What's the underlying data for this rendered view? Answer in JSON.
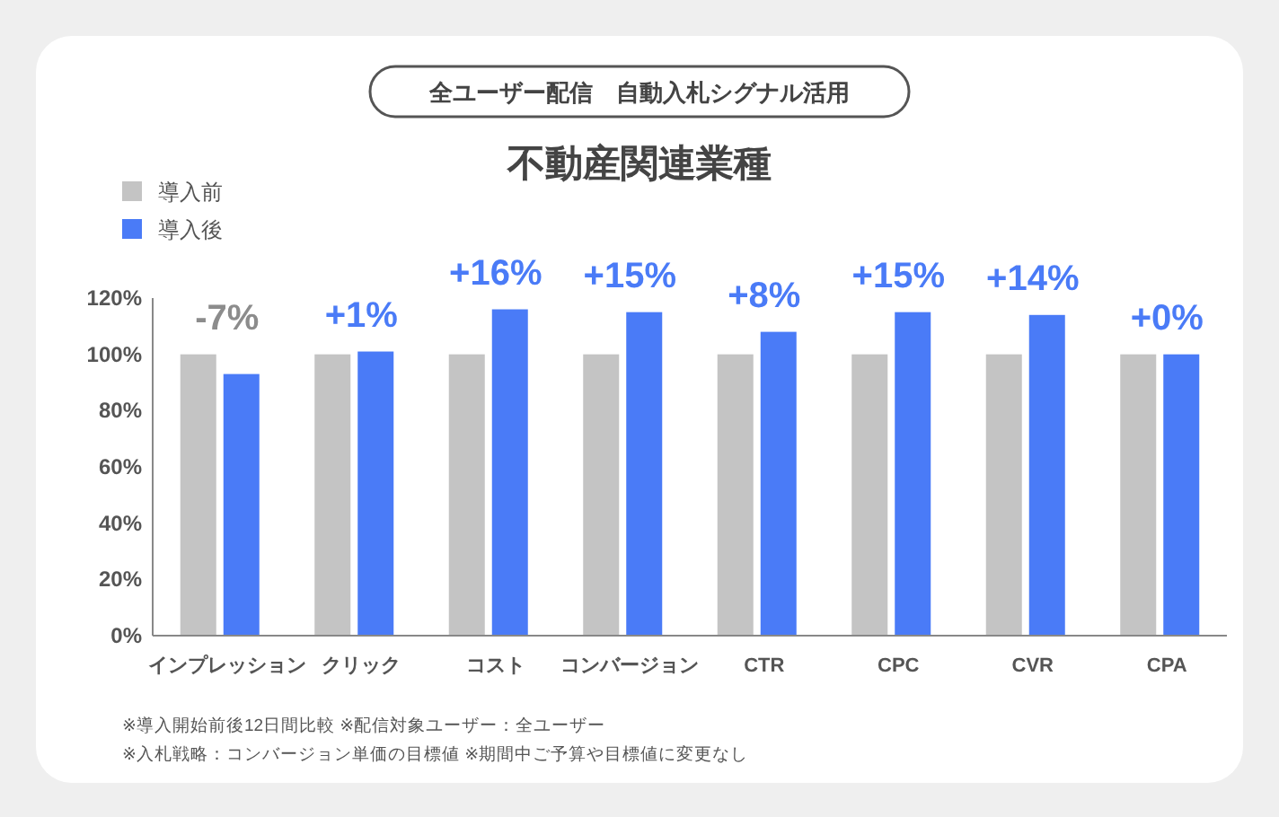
{
  "chart_data": {
    "type": "bar",
    "title": "不動産関連業種",
    "subtitle": "全ユーザー配信　自動入札シグナル活用",
    "categories": [
      "インプレッション",
      "クリック",
      "コスト",
      "コンバージョン",
      "CTR",
      "CPC",
      "CVR",
      "CPA"
    ],
    "series": [
      {
        "name": "導入前",
        "color": "#c4c4c4",
        "values": [
          100,
          100,
          100,
          100,
          100,
          100,
          100,
          100
        ]
      },
      {
        "name": "導入後",
        "color": "#4a7bf7",
        "values": [
          93,
          101,
          116,
          115,
          108,
          115,
          114,
          100
        ]
      }
    ],
    "ylim": [
      0,
      120
    ],
    "yticks": [
      {
        "value": 0,
        "label": "0%"
      },
      {
        "value": 20,
        "label": "20%"
      },
      {
        "value": 40,
        "label": "40%"
      },
      {
        "value": 60,
        "label": "60%"
      },
      {
        "value": 80,
        "label": "80%"
      },
      {
        "value": 100,
        "label": "100%"
      },
      {
        "value": 120,
        "label": "120%"
      }
    ],
    "grid": false,
    "legend": "top left",
    "annotations": [
      {
        "text": "-7%",
        "x": "インプレッション",
        "y": 93
      },
      {
        "text": "+1%",
        "x": "クリック",
        "y": 101
      },
      {
        "text": "+16%",
        "x": "コスト",
        "y": 116
      },
      {
        "text": "+15%",
        "x": "コンバージョン",
        "y": 115
      },
      {
        "text": "+8%",
        "x": "CTR",
        "y": 108
      },
      {
        "text": "+15%",
        "x": "CPC",
        "y": 115
      },
      {
        "text": "+14%",
        "x": "CVR",
        "y": 114
      },
      {
        "text": "+0%",
        "x": "CPA",
        "y": 100
      },
      "※導入開始前後12日間比較 ※配信対象ユーザー：全ユーザー",
      "※入札戦略：コンバージョン単価の目標値 ※期間中ご予算や目標値に変更なし"
    ]
  }
}
